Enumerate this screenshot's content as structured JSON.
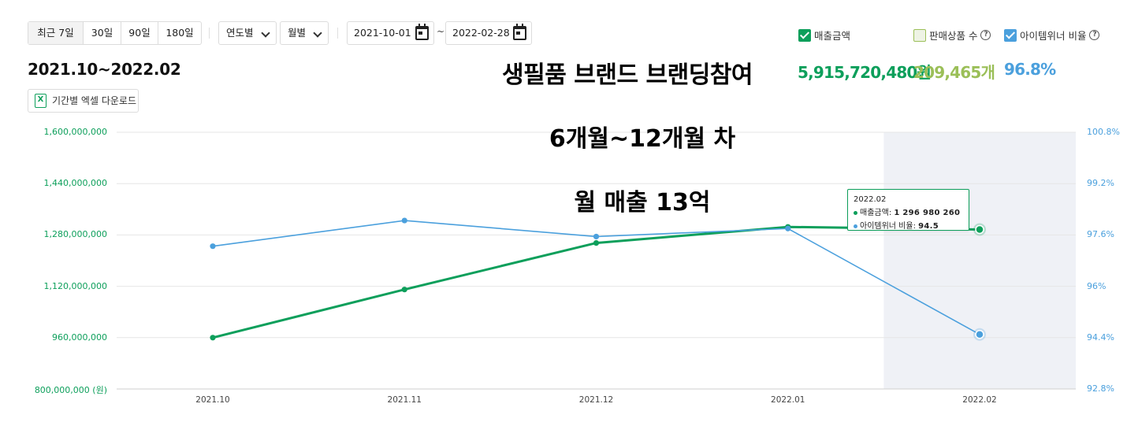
{
  "toolbar": {
    "range_buttons": [
      "최근 7일",
      "30일",
      "90일",
      "180일"
    ],
    "year_select": "연도별",
    "month_select": "월별",
    "date_from": "2021-10-01",
    "date_sep": "~",
    "date_to": "2022-02-28"
  },
  "legend_toggles": {
    "sales": {
      "label": "매출금액",
      "checked": true,
      "color": "#0d9f5b"
    },
    "items_sold": {
      "label": "판매상품 수",
      "checked": false,
      "color": "#9bbf58"
    },
    "item_winner": {
      "label": "아이템위너 비율",
      "checked": true,
      "color": "#4ba0dd"
    }
  },
  "summary": {
    "period": "2021.10~2022.02",
    "total_sales": "5,915,720,480원",
    "total_items": "209,465개",
    "winner_ratio": "96.8%"
  },
  "overlay_text": {
    "line1": "생필품 브랜드 브랜딩참여",
    "line2": "6개월~12개월 차",
    "line3": "월 매출 13억"
  },
  "excel_button": "기간별 엑셀 다운로드",
  "tooltip": {
    "date": "2022.02",
    "sales_label": "매출금액",
    "sales_value": "1 296 980 260",
    "winner_label": "아이템위너 비율",
    "winner_value": "94.5"
  },
  "chart_data": {
    "type": "line",
    "categories": [
      "2021.10",
      "2021.11",
      "2021.12",
      "2022.01",
      "2022.02"
    ],
    "y_left": {
      "ticks": [
        "800,000,000 (원)",
        "960,000,000",
        "1,120,000,000",
        "1,280,000,000",
        "1,440,000,000",
        "1,600,000,000"
      ],
      "ylim": [
        800000000,
        1600000000
      ]
    },
    "y_right": {
      "ticks": [
        "92.8%",
        "94.4%",
        "96%",
        "97.6%",
        "99.2%",
        "100.8%"
      ],
      "ylim": [
        92.8,
        100.8
      ]
    },
    "series": [
      {
        "name": "매출금액",
        "axis": "left",
        "color": "#0d9f5b",
        "values": [
          960000000,
          1110000000,
          1255000000,
          1305000000,
          1296980260
        ]
      },
      {
        "name": "아이템위너 비율",
        "axis": "right",
        "color": "#4ba0dd",
        "values": [
          97.25,
          98.05,
          97.55,
          97.8,
          94.5
        ]
      }
    ],
    "highlight_category": "2022.02",
    "grid": true
  }
}
